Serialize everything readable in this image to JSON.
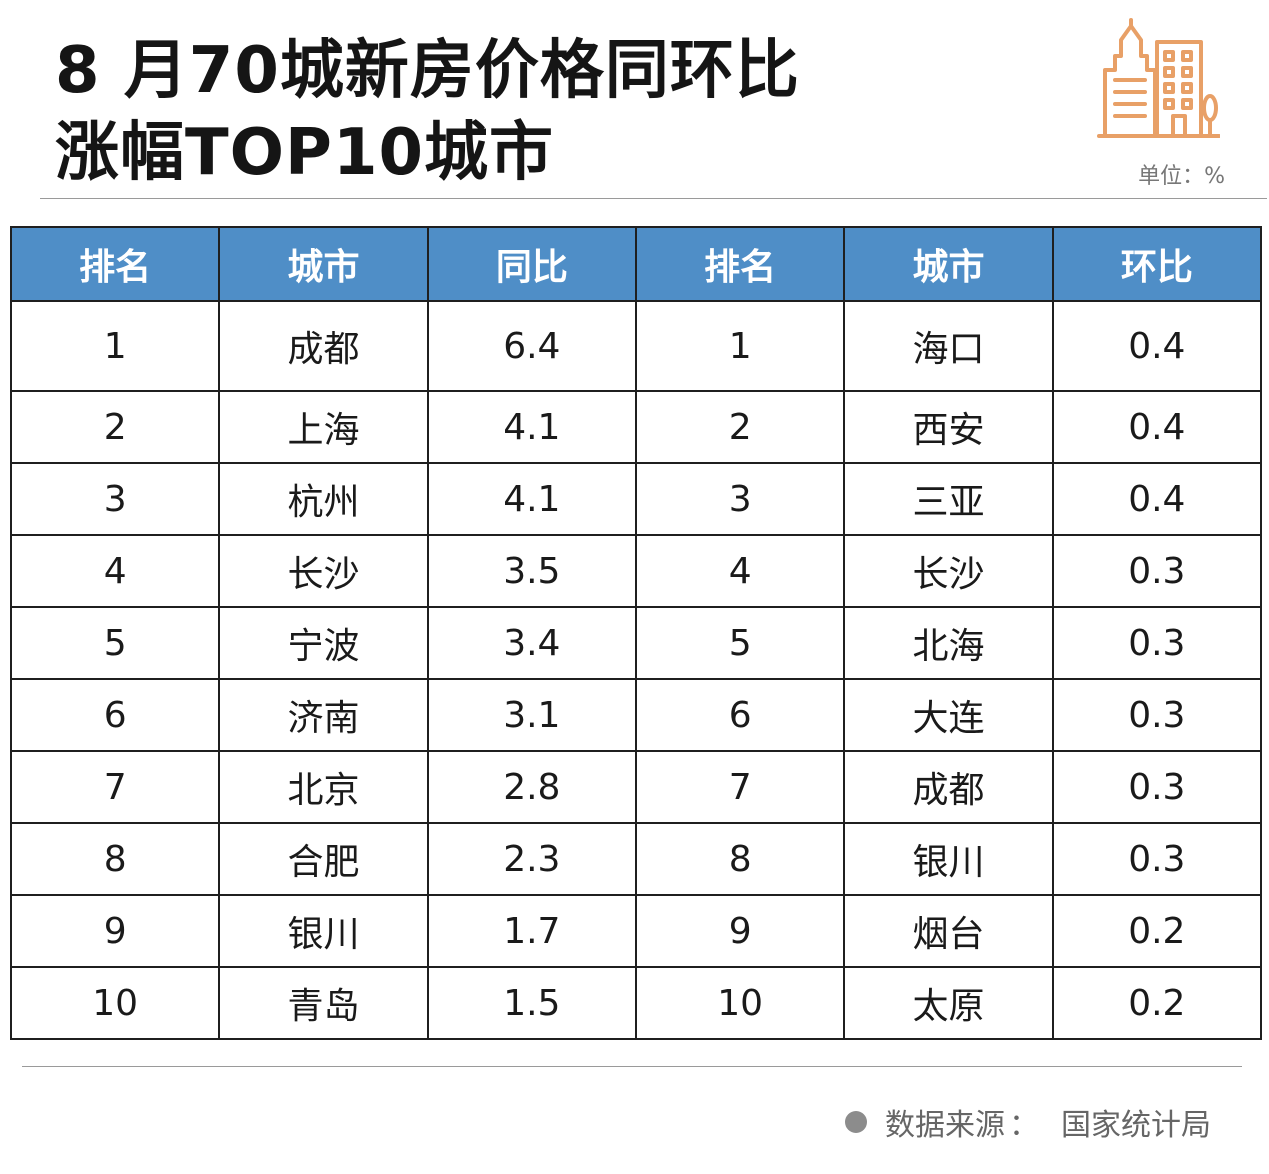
{
  "title": {
    "line1": "8 月70城新房价格同环比",
    "line2": "涨幅TOP10城市"
  },
  "unit": "单位：%",
  "icon": "building-icon",
  "accent_color": "#e8a067",
  "header_color": "#4f8ec7",
  "table": {
    "headers": [
      "排名",
      "城市",
      "同比",
      "排名",
      "城市",
      "环比"
    ],
    "rows": [
      [
        "1",
        "成都",
        "6.4",
        "1",
        "海口",
        "0.4"
      ],
      [
        "2",
        "上海",
        "4.1",
        "2",
        "西安",
        "0.4"
      ],
      [
        "3",
        "杭州",
        "4.1",
        "3",
        "三亚",
        "0.4"
      ],
      [
        "4",
        "长沙",
        "3.5",
        "4",
        "长沙",
        "0.3"
      ],
      [
        "5",
        "宁波",
        "3.4",
        "5",
        "北海",
        "0.3"
      ],
      [
        "6",
        "济南",
        "3.1",
        "6",
        "大连",
        "0.3"
      ],
      [
        "7",
        "北京",
        "2.8",
        "7",
        "成都",
        "0.3"
      ],
      [
        "8",
        "合肥",
        "2.3",
        "8",
        "银川",
        "0.3"
      ],
      [
        "9",
        "银川",
        "1.7",
        "9",
        "烟台",
        "0.2"
      ],
      [
        "10",
        "青岛",
        "1.5",
        "10",
        "太原",
        "0.2"
      ]
    ]
  },
  "source": {
    "label": "数据来源",
    "separator": "：",
    "value": "国家统计局"
  }
}
